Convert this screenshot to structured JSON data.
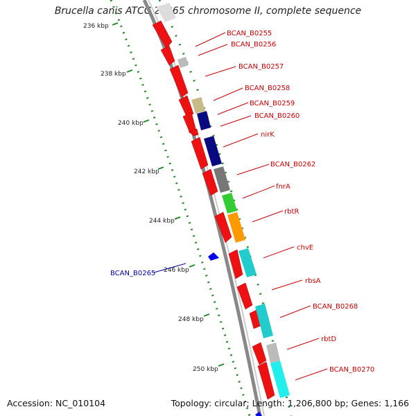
{
  "title": "Brucella canis ATCC 23365 chromosome II, complete sequence",
  "accession": "Accession: NC_010104",
  "topology": "Topology: circular; Length: 1,206,800 bp; Genes: 1,166",
  "colors": {
    "red": "#ee1111",
    "backbone": "#888888",
    "tick": "#228822",
    "label_red": "#cc0000",
    "label_blue": "#0000aa"
  },
  "scale_ticks": [
    "236 kbp",
    "238 kbp",
    "240 kbp",
    "242 kbp",
    "244 kbp",
    "246 kbp",
    "248 kbp",
    "250 kbp"
  ],
  "genes": [
    {
      "label": "BCAN_B0255",
      "color": "red"
    },
    {
      "label": "BCAN_B0256",
      "color": "red"
    },
    {
      "label": "BCAN_B0257",
      "color": "red"
    },
    {
      "label": "BCAN_B0258",
      "color": "red"
    },
    {
      "label": "BCAN_B0259",
      "color": "red"
    },
    {
      "label": "BCAN_B0260",
      "color": "red"
    },
    {
      "label": "nirK",
      "color": "red"
    },
    {
      "label": "BCAN_B0262",
      "color": "red"
    },
    {
      "label": "fnrA",
      "color": "red"
    },
    {
      "label": "rbtR",
      "color": "red"
    },
    {
      "label": "chvE",
      "color": "red"
    },
    {
      "label": "rbsA",
      "color": "red"
    },
    {
      "label": "BCAN_B0268",
      "color": "red"
    },
    {
      "label": "rbtD",
      "color": "red"
    },
    {
      "label": "BCAN_B0270",
      "color": "red"
    },
    {
      "label": "BCAN_B0265",
      "color": "blue"
    }
  ]
}
